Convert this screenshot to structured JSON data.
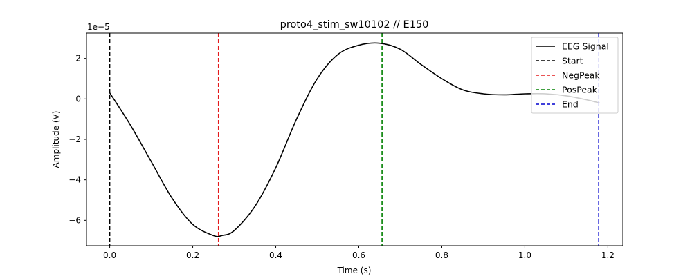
{
  "chart_data": {
    "type": "line",
    "title": "proto4_stim_sw10102 // E150",
    "xlabel": "Time (s)",
    "ylabel": "Amplitude (V)",
    "y_offset_label": "1e−5",
    "xlim": [
      -0.056,
      1.236
    ],
    "ylim": [
      -7.25,
      3.25
    ],
    "x_ticks": [
      0.0,
      0.2,
      0.4,
      0.6,
      0.8,
      1.0,
      1.2
    ],
    "x_tick_labels": [
      "0.0",
      "0.2",
      "0.4",
      "0.6",
      "0.8",
      "1.0",
      "1.2"
    ],
    "y_ticks": [
      -6,
      -4,
      -2,
      0,
      2
    ],
    "y_tick_labels": [
      "−6",
      "−4",
      "−2",
      "0",
      "2"
    ],
    "grid": false,
    "legend_position": "top-right",
    "series": [
      {
        "name": "EEG Signal",
        "color": "#000000",
        "style": "solid",
        "x": [
          0.0,
          0.05,
          0.1,
          0.15,
          0.2,
          0.25,
          0.27,
          0.3,
          0.35,
          0.4,
          0.45,
          0.5,
          0.55,
          0.6,
          0.65,
          0.7,
          0.75,
          0.8,
          0.85,
          0.9,
          0.95,
          1.0,
          1.05,
          1.1,
          1.15,
          1.18
        ],
        "y": [
          0.3,
          -1.3,
          -3.1,
          -4.9,
          -6.2,
          -6.75,
          -6.75,
          -6.5,
          -5.3,
          -3.4,
          -1.0,
          1.0,
          2.2,
          2.65,
          2.75,
          2.45,
          1.7,
          1.0,
          0.45,
          0.25,
          0.2,
          0.25,
          0.25,
          0.15,
          -0.05,
          -0.2
        ]
      }
    ],
    "markers": [
      {
        "name": "Start",
        "x": 0.0,
        "color": "#000000",
        "style": "dashed"
      },
      {
        "name": "NegPeak",
        "x": 0.262,
        "color": "#e41a1c",
        "style": "dashed"
      },
      {
        "name": "PosPeak",
        "x": 0.656,
        "color": "#008000",
        "style": "dashed"
      },
      {
        "name": "End",
        "x": 1.178,
        "color": "#0000cd",
        "style": "dashed"
      }
    ]
  }
}
